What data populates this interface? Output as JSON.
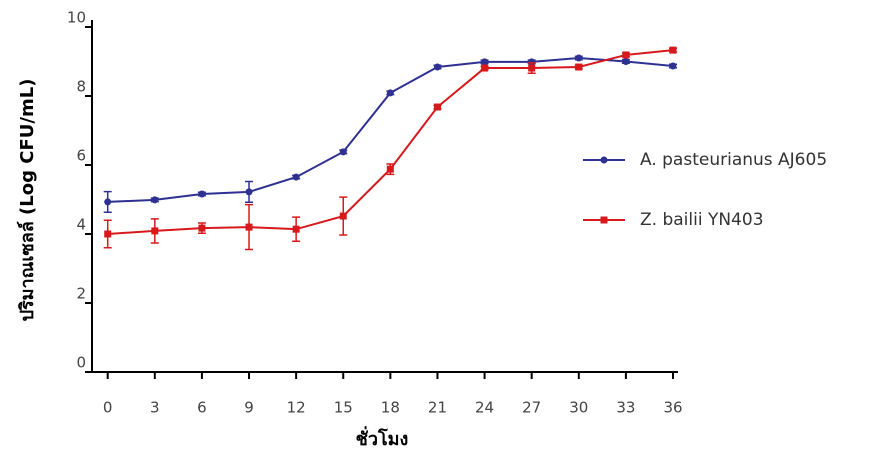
{
  "chart_data": {
    "type": "line",
    "x_label": "ชั่วโมง",
    "y_label": "ปริมาณเซลล์ (Log CFU/mL)",
    "x": [
      0,
      3,
      6,
      9,
      12,
      15,
      18,
      21,
      24,
      27,
      30,
      33,
      36
    ],
    "xlim": [
      -1,
      36
    ],
    "xticks": [
      0,
      3,
      6,
      9,
      12,
      15,
      18,
      21,
      24,
      27,
      30,
      33,
      36
    ],
    "ylim": [
      0,
      10
    ],
    "yticks": [
      0,
      2,
      4,
      6,
      8,
      10
    ],
    "series": [
      {
        "name": "A. pasteurianus AJ605",
        "color": "#2e3192",
        "marker": "circle",
        "values": [
          4.93,
          4.99,
          5.16,
          5.22,
          5.65,
          6.38,
          8.09,
          8.84,
          8.99,
          8.99,
          9.1,
          9.0,
          8.87
        ],
        "errors": [
          0.3,
          0.05,
          0.05,
          0.3,
          0.05,
          0.05,
          0.05,
          0.05,
          0.05,
          0.05,
          0.05,
          0.05,
          0.05
        ]
      },
      {
        "name": "Z. bailii YN403",
        "color": "#d7191c",
        "marker": "square",
        "values": [
          4.0,
          4.09,
          4.17,
          4.2,
          4.14,
          4.52,
          5.88,
          7.68,
          8.81,
          8.81,
          8.84,
          9.19,
          9.33
        ],
        "errors": [
          0.4,
          0.35,
          0.15,
          0.65,
          0.35,
          0.55,
          0.15,
          0.05,
          0.05,
          0.15,
          0.05,
          0.05,
          0.05
        ]
      }
    ]
  }
}
